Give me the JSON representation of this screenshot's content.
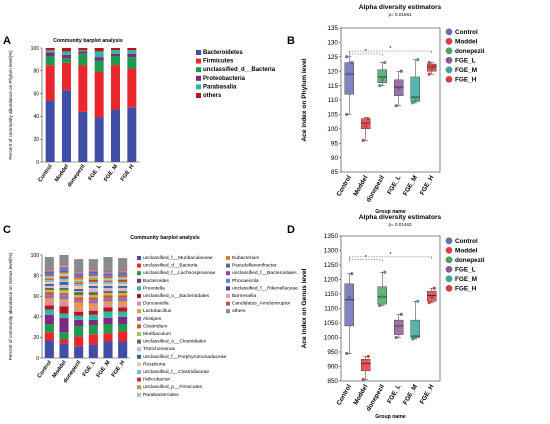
{
  "panels": {
    "A": {
      "letter": "A"
    },
    "B": {
      "letter": "B"
    },
    "C": {
      "letter": "C"
    },
    "D": {
      "letter": "D"
    }
  },
  "chart_data": [
    {
      "id": "A",
      "type": "bar",
      "stacked": true,
      "title": "Community barplot analysis",
      "xlabel": "",
      "ylabel": "Percent of community abundance on Phylum level(%)",
      "ylim": [
        0,
        100
      ],
      "yticks": [
        0,
        20,
        40,
        60,
        80,
        100
      ],
      "categories": [
        "Control",
        "Moddel",
        "donepezil",
        "FGE_L",
        "FGE_M",
        "FGE_H"
      ],
      "series": [
        {
          "name": "Bacteroidetes",
          "color": "#3f4fa8",
          "values": [
            54,
            63,
            44,
            39,
            46,
            48
          ]
        },
        {
          "name": "Firmicutes",
          "color": "#e8262b",
          "values": [
            31,
            24,
            41,
            40,
            39,
            34
          ]
        },
        {
          "name": "unclassified_d__Bacteria",
          "color": "#1e9a4c",
          "values": [
            8,
            4,
            10,
            10,
            8,
            10
          ]
        },
        {
          "name": "Proteobacteria",
          "color": "#7b2a7f",
          "values": [
            3,
            3,
            2,
            3,
            2,
            3
          ]
        },
        {
          "name": "Parabasalia",
          "color": "#2bb8a4",
          "values": [
            2,
            3,
            1,
            5,
            3,
            3
          ]
        },
        {
          "name": "others",
          "color": "#b5181c",
          "values": [
            2,
            3,
            2,
            3,
            2,
            2
          ]
        }
      ],
      "legend": "right"
    },
    {
      "id": "B",
      "type": "box",
      "title": "Alpha diversity estimators",
      "subtitle": "p= 0.01661",
      "xlabel": "Group name",
      "ylabel": "Ace index on Phylum level",
      "ylim": [
        85,
        135
      ],
      "yticks": [
        85,
        90,
        95,
        100,
        105,
        110,
        115,
        120,
        125,
        130,
        135
      ],
      "categories": [
        "Control",
        "Moddel",
        "donepezil",
        "FGE_L",
        "FGE_M",
        "FGE_H"
      ],
      "boxes": [
        {
          "name": "Control",
          "color": "#6a6fb5",
          "min": 105,
          "q1": 112,
          "median": 119,
          "q3": 123,
          "max": 125,
          "points": [
            105,
            119,
            123,
            125
          ]
        },
        {
          "name": "Moddel",
          "color": "#e8393c",
          "min": 96,
          "q1": 100,
          "median": 102,
          "q3": 103.5,
          "max": 104,
          "points": [
            96,
            101,
            103.5
          ]
        },
        {
          "name": "donepezil",
          "color": "#4aa565",
          "min": 115,
          "q1": 116,
          "median": 118,
          "q3": 120.5,
          "max": 123,
          "points": [
            115,
            117,
            123
          ]
        },
        {
          "name": "FGE_L",
          "color": "#8b5a9a",
          "min": 108,
          "q1": 111.5,
          "median": 114.5,
          "q3": 117,
          "max": 120,
          "points": [
            108,
            114,
            120
          ]
        },
        {
          "name": "FGE_M",
          "color": "#3aa99a",
          "min": 109,
          "q1": 109.5,
          "median": 111,
          "q3": 118,
          "max": 124,
          "points": [
            109,
            110,
            124
          ]
        },
        {
          "name": "FGE_H",
          "color": "#e23b3e",
          "min": 119,
          "q1": 120,
          "median": 121.5,
          "q3": 122.5,
          "max": 123,
          "points": [
            119,
            121,
            122,
            123
          ]
        }
      ],
      "significance": [
        {
          "from": "Control",
          "to": "donepezil",
          "label": "*",
          "y": 126
        },
        {
          "from": "Control",
          "to": "FGE_H",
          "label": "*",
          "y": 127
        }
      ],
      "legend": "right"
    },
    {
      "id": "C",
      "type": "bar",
      "stacked": true,
      "title": "Community barplot analysis",
      "xlabel": "",
      "ylabel": "Percent of community abundance on Genus level(%)",
      "ylim": [
        0,
        100
      ],
      "yticks": [
        0,
        20,
        40,
        60,
        80,
        100
      ],
      "categories": [
        "Control",
        "Moddel",
        "donepezil",
        "FGE_L",
        "FGE_M",
        "FGE_H"
      ],
      "series": [
        {
          "name": "unclassified_f__Muribaculaceae",
          "color": "#3f4fa8",
          "values": [
            17,
            14,
            11,
            13,
            16,
            16
          ]
        },
        {
          "name": "unclassified_d__Bacteria",
          "color": "#e8262b",
          "values": [
            8,
            4,
            10,
            10,
            8,
            10
          ]
        },
        {
          "name": "unclassified_f__Lachnospiraceae",
          "color": "#1e9a4c",
          "values": [
            8,
            7,
            10,
            9,
            9,
            7
          ]
        },
        {
          "name": "Bacteroides",
          "color": "#7b2a7f",
          "values": [
            9,
            14,
            6,
            5,
            6,
            7
          ]
        },
        {
          "name": "Prevotella",
          "color": "#2bb8a4",
          "values": [
            5,
            4,
            4,
            5,
            6,
            5
          ]
        },
        {
          "name": "unclassified_o__Bacteroidales",
          "color": "#b5181c",
          "values": [
            4,
            7,
            4,
            4,
            4,
            4
          ]
        },
        {
          "name": "Duncaniella",
          "color": "#e08aa0",
          "values": [
            4,
            5,
            3,
            3,
            3,
            3
          ]
        },
        {
          "name": "Lactobacillus",
          "color": "#e59a3e",
          "values": [
            3,
            2,
            6,
            4,
            3,
            3
          ]
        },
        {
          "name": "Alistipes",
          "color": "#8b6bbf",
          "values": [
            3,
            4,
            2,
            3,
            3,
            3
          ]
        },
        {
          "name": "Clostridium",
          "color": "#d9552b",
          "values": [
            3,
            2,
            3,
            3,
            3,
            3
          ]
        },
        {
          "name": "Muribaculum",
          "color": "#a8c26a",
          "values": [
            2,
            3,
            2,
            2,
            2,
            2
          ]
        },
        {
          "name": "unclassified_o__Clostridiales",
          "color": "#6b6b3a",
          "values": [
            2,
            2,
            3,
            3,
            2,
            2
          ]
        },
        {
          "name": "Tritrichomonas",
          "color": "#d4b5d9",
          "values": [
            2,
            3,
            1,
            4,
            3,
            3
          ]
        },
        {
          "name": "unclassified_f__Porphyromonadaceae",
          "color": "#2d6a9e",
          "values": [
            2,
            3,
            2,
            2,
            2,
            2
          ]
        },
        {
          "name": "Roseburia",
          "color": "#f0c7a8",
          "values": [
            2,
            1,
            3,
            2,
            2,
            2
          ]
        },
        {
          "name": "unclassified_f__Clostridiaceae",
          "color": "#7fb3d5",
          "values": [
            2,
            2,
            2,
            2,
            2,
            2
          ]
        },
        {
          "name": "Helicobacter",
          "color": "#c0392b",
          "values": [
            1,
            2,
            1,
            2,
            1,
            2
          ]
        },
        {
          "name": "unclassified_p__Firmicutes",
          "color": "#b0a040",
          "values": [
            1,
            1,
            2,
            2,
            1,
            1
          ]
        },
        {
          "name": "Parabacteroides",
          "color": "#9ad0c2",
          "values": [
            1,
            2,
            1,
            1,
            1,
            1
          ]
        },
        {
          "name": "Eubacterium",
          "color": "#e67e22",
          "values": [
            1,
            1,
            2,
            1,
            1,
            1
          ]
        },
        {
          "name": "Pseudoflavonifractor",
          "color": "#5d6d7e",
          "values": [
            1,
            1,
            1,
            1,
            1,
            1
          ]
        },
        {
          "name": "unclassified_f__Bacteroidales",
          "color": "#8e44ad",
          "values": [
            1,
            1,
            1,
            1,
            1,
            1
          ]
        },
        {
          "name": "Phocaeicola",
          "color": "#4e8ad1",
          "values": [
            1,
            2,
            1,
            1,
            1,
            1
          ]
        },
        {
          "name": "unclassified_f__Rikenellaceae",
          "color": "#5e3a8a",
          "values": [
            1,
            1,
            1,
            1,
            1,
            1
          ]
        },
        {
          "name": "Barnesiella",
          "color": "#e5a3b8",
          "values": [
            1,
            1,
            1,
            1,
            1,
            1
          ]
        },
        {
          "name": "Candidatus_Amulumruptor",
          "color": "#c0506a",
          "values": [
            1,
            1,
            1,
            1,
            1,
            1
          ]
        },
        {
          "name": "others",
          "color": "#8a8a8a",
          "values": [
            12,
            10,
            12,
            10,
            14,
            12
          ]
        }
      ],
      "legend": "right"
    },
    {
      "id": "D",
      "type": "box",
      "title": "Alpha diversity estimators",
      "subtitle": "p= 0.01463",
      "xlabel": "Group name",
      "ylabel": "Ace index on Genus level",
      "ylim": [
        850,
        1350
      ],
      "yticks": [
        850,
        900,
        950,
        1000,
        1050,
        1100,
        1150,
        1200,
        1250,
        1300,
        1350
      ],
      "categories": [
        "Control",
        "Moddel",
        "donepezil",
        "FGE_L",
        "FGE_M",
        "FGE_H"
      ],
      "boxes": [
        {
          "name": "Control",
          "color": "#6a6fb5",
          "min": 945,
          "q1": 1040,
          "median": 1130,
          "q3": 1185,
          "max": 1220,
          "points": [
            945,
            1140,
            1220
          ]
        },
        {
          "name": "Moddel",
          "color": "#e8393c",
          "min": 855,
          "q1": 885,
          "median": 910,
          "q3": 925,
          "max": 935,
          "points": [
            855,
            910,
            935
          ]
        },
        {
          "name": "donepezil",
          "color": "#4aa565",
          "min": 1110,
          "q1": 1115,
          "median": 1140,
          "q3": 1175,
          "max": 1225,
          "points": [
            1110,
            1140,
            1225
          ]
        },
        {
          "name": "FGE_L",
          "color": "#8b5a9a",
          "min": 1000,
          "q1": 1010,
          "median": 1040,
          "q3": 1060,
          "max": 1080,
          "points": [
            1000,
            1040,
            1080
          ]
        },
        {
          "name": "FGE_M",
          "color": "#3aa99a",
          "min": 995,
          "q1": 1000,
          "median": 1005,
          "q3": 1060,
          "max": 1125,
          "points": [
            995,
            1000,
            1125
          ]
        },
        {
          "name": "FGE_H",
          "color": "#e23b3e",
          "min": 1120,
          "q1": 1125,
          "median": 1145,
          "q3": 1160,
          "max": 1170,
          "points": [
            1120,
            1140,
            1170
          ]
        }
      ],
      "significance": [
        {
          "from": "Control",
          "to": "donepezil",
          "label": "*",
          "y": 1268
        },
        {
          "from": "Control",
          "to": "FGE_H",
          "label": "*",
          "y": 1278
        }
      ],
      "legend": "right"
    }
  ]
}
